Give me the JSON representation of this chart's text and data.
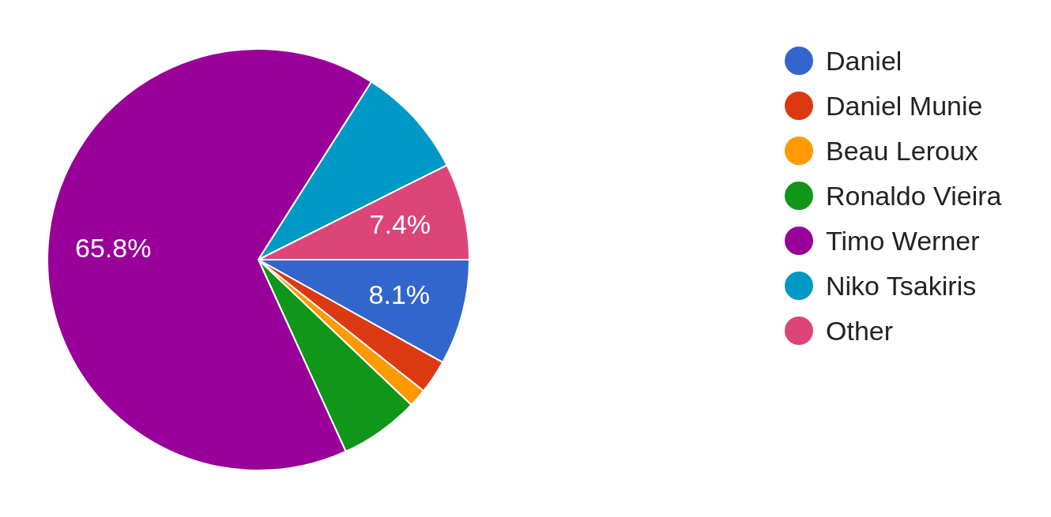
{
  "chart_data": {
    "type": "pie",
    "categories": [
      "Daniel",
      "Daniel Munie",
      "Beau Leroux",
      "Ronaldo Vieira",
      "Timo Werner",
      "Niko Tsakiris",
      "Other"
    ],
    "values": [
      8.1,
      2.6,
      1.4,
      6.1,
      65.8,
      8.6,
      7.4
    ],
    "colors": [
      "#3366cc",
      "#dc3912",
      "#ff9900",
      "#109618",
      "#990099",
      "#0099c6",
      "#dd4477"
    ],
    "value_labels": [
      "8.1%",
      null,
      null,
      null,
      "65.8%",
      null,
      "7.4%"
    ],
    "legend": "right"
  }
}
